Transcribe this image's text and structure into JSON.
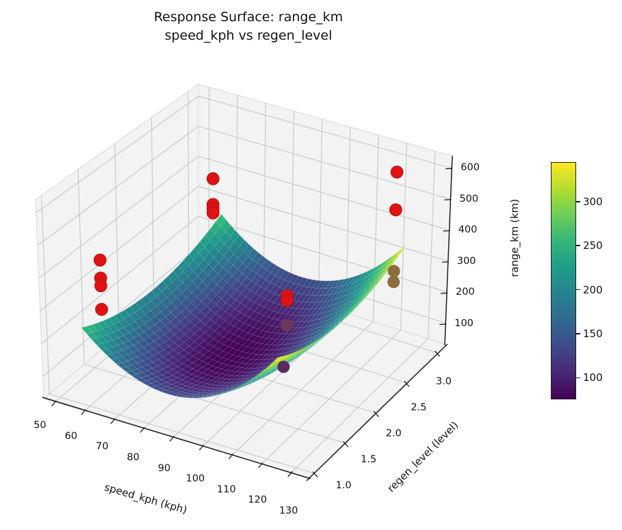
{
  "title": {
    "line1": "Response Surface: range_km",
    "line2": "speed_kph vs regen_level"
  },
  "chart_data": {
    "type": "surface",
    "title": "Response Surface: range_km\nspeed_kph vs regen_level",
    "xlabel": "speed_kph (kph)",
    "ylabel": "regen_level (level)",
    "zlabel": "range_km (km)",
    "xticks": [
      "50",
      "60",
      "70",
      "80",
      "90",
      "100",
      "110",
      "120",
      "130"
    ],
    "yticks": [
      "1.0",
      "1.5",
      "2.0",
      "2.5",
      "3.0"
    ],
    "zticks": [
      "100",
      "200",
      "300",
      "400",
      "500",
      "600"
    ],
    "xtick_values": [
      50,
      60,
      70,
      80,
      90,
      100,
      110,
      120,
      130
    ],
    "ytick_values": [
      1.0,
      1.5,
      2.0,
      2.5,
      3.0
    ],
    "ztick_values": [
      100,
      200,
      300,
      400,
      500,
      600
    ],
    "xlim": [
      46.2,
      136.1
    ],
    "ylim": [
      0.92,
      3.14
    ],
    "zlim": [
      32,
      640
    ],
    "grid": true,
    "colormap": "viridis",
    "surface_fit": {
      "description": "quadratic response-surface fit: range_km = 77 + 0.15*(speed_kph-87)^2 + 63*(regen_level-2)^2",
      "base_range_km": 77,
      "speed_center": 87,
      "speed_curvature": 0.15,
      "regen_center": 2.0,
      "regen_curvature": 63,
      "speed_range": [
        58,
        124
      ],
      "regen_range": [
        1.0,
        3.0
      ],
      "range_min": 77,
      "range_max": 345
    },
    "scatter_points": [
      {
        "speed_kph": 65,
        "regen_level": 1.0,
        "range_km": 490,
        "occluded": false
      },
      {
        "speed_kph": 65,
        "regen_level": 1.0,
        "range_km": 435,
        "occluded": false
      },
      {
        "speed_kph": 65,
        "regen_level": 1.0,
        "range_km": 412,
        "occluded": false
      },
      {
        "speed_kph": 65,
        "regen_level": 1.0,
        "range_km": 340,
        "occluded": false
      },
      {
        "speed_kph": 55,
        "regen_level": 3.0,
        "range_km": 375,
        "occluded": false
      },
      {
        "speed_kph": 55,
        "regen_level": 3.0,
        "range_km": 290,
        "occluded": false
      },
      {
        "speed_kph": 55,
        "regen_level": 3.0,
        "range_km": 276,
        "occluded": false
      },
      {
        "speed_kph": 55,
        "regen_level": 3.0,
        "range_km": 262,
        "occluded": false
      },
      {
        "speed_kph": 120,
        "regen_level": 3.0,
        "range_km": 570,
        "occluded": false
      },
      {
        "speed_kph": 120,
        "regen_level": 3.0,
        "range_km": 448,
        "occluded": false
      },
      {
        "speed_kph": 105,
        "regen_level": 2.0,
        "range_km": 313,
        "occluded": false
      },
      {
        "speed_kph": 105,
        "regen_level": 2.0,
        "range_km": 298,
        "occluded": false
      },
      {
        "speed_kph": 105,
        "regen_level": 2.0,
        "range_km": 220,
        "occluded": true,
        "dim_color": "#6b3a58"
      },
      {
        "speed_kph": 115,
        "regen_level": 1.5,
        "range_km": 208,
        "occluded": true,
        "dim_color": "#5a2d62"
      },
      {
        "speed_kph": 120,
        "regen_level": 3.0,
        "range_km": 250,
        "occluded": true,
        "dim_color": "#8a6d3f"
      },
      {
        "speed_kph": 120,
        "regen_level": 3.0,
        "range_km": 215,
        "occluded": true,
        "dim_color": "#8a6d3f"
      }
    ],
    "colorbar": {
      "ticks": [
        "100",
        "150",
        "200",
        "250",
        "300"
      ],
      "tick_values": [
        100,
        150,
        200,
        250,
        300
      ],
      "vmin": 77,
      "vmax": 345
    },
    "colors": {
      "point": "#e11212",
      "point_edge": "#a50f0f",
      "pane": "#f3f3f3",
      "grid_line": "#c6c6c6",
      "pane_edge": "#d8d8d8",
      "spine": "#1a1a1a",
      "text": "#111111"
    }
  }
}
